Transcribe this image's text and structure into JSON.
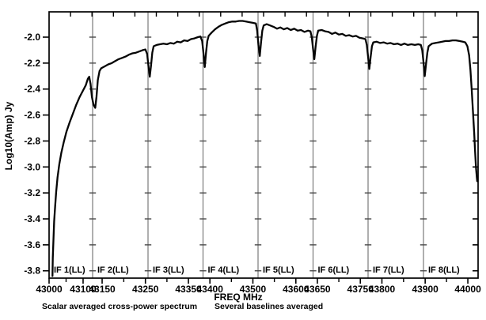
{
  "chart_data": {
    "type": "line",
    "title": "",
    "xlabel": "FREQ MHz",
    "ylabel": "Log10(Amp) Jy",
    "caption_left": "Scalar averaged cross-power spectrum",
    "caption_right": "Several baselines averaged",
    "x_start_mhz": 43000,
    "x_end_mhz": 44024,
    "ylim": [
      -3.86,
      -1.8
    ],
    "grid": "vertical panel separators only",
    "legend": "none",
    "y_ticks": [
      {
        "value": -2.0,
        "label": "-2.0"
      },
      {
        "value": -2.2,
        "label": "-2.2"
      },
      {
        "value": -2.4,
        "label": "-2.4"
      },
      {
        "value": -2.6,
        "label": "-2.6"
      },
      {
        "value": -2.8,
        "label": "-2.8"
      },
      {
        "value": -3.0,
        "label": "-3.0"
      },
      {
        "value": -3.2,
        "label": "-3.2"
      },
      {
        "value": -3.4,
        "label": "-3.4"
      },
      {
        "value": -3.6,
        "label": "-3.6"
      },
      {
        "value": -3.8,
        "label": "-3.8"
      }
    ],
    "panels": [
      {
        "label": "IF 1(LL)",
        "f0": 43000,
        "f1": 43128,
        "labeled_ticks": [
          43000,
          43100
        ],
        "minor_ticks": [
          43050
        ]
      },
      {
        "label": "IF 2(LL)",
        "f0": 43128,
        "f1": 43256,
        "labeled_ticks": [
          43150,
          43250
        ],
        "minor_ticks": [
          43200
        ]
      },
      {
        "label": "IF 3(LL)",
        "f0": 43256,
        "f1": 43384,
        "labeled_ticks": [
          43350
        ],
        "minor_ticks": [
          43300
        ]
      },
      {
        "label": "IF 4(LL)",
        "f0": 43384,
        "f1": 43512,
        "labeled_ticks": [
          43400,
          43500
        ],
        "minor_ticks": [
          43450
        ]
      },
      {
        "label": "IF 5(LL)",
        "f0": 43512,
        "f1": 43640,
        "labeled_ticks": [
          43600
        ],
        "minor_ticks": [
          43550
        ]
      },
      {
        "label": "IF 6(LL)",
        "f0": 43640,
        "f1": 43768,
        "labeled_ticks": [
          43650,
          43750
        ],
        "minor_ticks": [
          43700
        ]
      },
      {
        "label": "IF 7(LL)",
        "f0": 43768,
        "f1": 43896,
        "labeled_ticks": [
          43800
        ],
        "minor_ticks": [
          43850
        ]
      },
      {
        "label": "IF 8(LL)",
        "f0": 43896,
        "f1": 44024,
        "labeled_ticks": [
          43900,
          44000
        ],
        "minor_ticks": [
          43950
        ]
      }
    ],
    "colors": {
      "curve": "#050505",
      "frame": "#000000",
      "panel_line": "#7a7a7a",
      "panel_tick": "#4a4a4a",
      "text": "#000000"
    },
    "series": [
      {
        "name": "cross-power amplitude",
        "x_unit": "MHz",
        "y_unit": "log10(Jy)",
        "points": [
          [
            43010,
            -3.84
          ],
          [
            43011,
            -3.7
          ],
          [
            43013,
            -3.55
          ],
          [
            43015,
            -3.42
          ],
          [
            43018,
            -3.3
          ],
          [
            43021,
            -3.19
          ],
          [
            43025,
            -3.08
          ],
          [
            43030,
            -2.98
          ],
          [
            43036,
            -2.89
          ],
          [
            43043,
            -2.81
          ],
          [
            43051,
            -2.73
          ],
          [
            43060,
            -2.66
          ],
          [
            43070,
            -2.59
          ],
          [
            43080,
            -2.52
          ],
          [
            43090,
            -2.46
          ],
          [
            43100,
            -2.41
          ],
          [
            43108,
            -2.37
          ],
          [
            43114,
            -2.32
          ],
          [
            43118,
            -2.305
          ],
          [
            43122,
            -2.36
          ],
          [
            43126,
            -2.46
          ],
          [
            43130,
            -2.52
          ],
          [
            43134,
            -2.545
          ],
          [
            43137,
            -2.46
          ],
          [
            43140,
            -2.33
          ],
          [
            43144,
            -2.26
          ],
          [
            43148,
            -2.24
          ],
          [
            43156,
            -2.225
          ],
          [
            43164,
            -2.21
          ],
          [
            43172,
            -2.2
          ],
          [
            43180,
            -2.185
          ],
          [
            43188,
            -2.17
          ],
          [
            43196,
            -2.16
          ],
          [
            43204,
            -2.15
          ],
          [
            43212,
            -2.135
          ],
          [
            43220,
            -2.125
          ],
          [
            43228,
            -2.12
          ],
          [
            43236,
            -2.11
          ],
          [
            43244,
            -2.1
          ],
          [
            43250,
            -2.095
          ],
          [
            43254,
            -2.13
          ],
          [
            43257,
            -2.22
          ],
          [
            43260,
            -2.305
          ],
          [
            43263,
            -2.22
          ],
          [
            43266,
            -2.12
          ],
          [
            43269,
            -2.07
          ],
          [
            43276,
            -2.06
          ],
          [
            43284,
            -2.055
          ],
          [
            43292,
            -2.05
          ],
          [
            43300,
            -2.055
          ],
          [
            43308,
            -2.045
          ],
          [
            43316,
            -2.05
          ],
          [
            43324,
            -2.035
          ],
          [
            43332,
            -2.04
          ],
          [
            43340,
            -2.025
          ],
          [
            43348,
            -2.03
          ],
          [
            43356,
            -2.015
          ],
          [
            43364,
            -2.01
          ],
          [
            43372,
            -2.0
          ],
          [
            43378,
            -1.995
          ],
          [
            43382,
            -2.03
          ],
          [
            43385,
            -2.12
          ],
          [
            43388,
            -2.23
          ],
          [
            43391,
            -2.12
          ],
          [
            43394,
            -2.03
          ],
          [
            43397,
            -1.99
          ],
          [
            43404,
            -1.965
          ],
          [
            43412,
            -1.94
          ],
          [
            43420,
            -1.92
          ],
          [
            43428,
            -1.905
          ],
          [
            43436,
            -1.895
          ],
          [
            43444,
            -1.885
          ],
          [
            43452,
            -1.88
          ],
          [
            43460,
            -1.88
          ],
          [
            43468,
            -1.875
          ],
          [
            43476,
            -1.875
          ],
          [
            43484,
            -1.88
          ],
          [
            43492,
            -1.885
          ],
          [
            43500,
            -1.89
          ],
          [
            43507,
            -1.895
          ],
          [
            43510,
            -1.95
          ],
          [
            43513,
            -2.06
          ],
          [
            43516,
            -2.145
          ],
          [
            43519,
            -2.04
          ],
          [
            43522,
            -1.95
          ],
          [
            43525,
            -1.91
          ],
          [
            43532,
            -1.9
          ],
          [
            43540,
            -1.91
          ],
          [
            43548,
            -1.92
          ],
          [
            43556,
            -1.935
          ],
          [
            43564,
            -1.925
          ],
          [
            43572,
            -1.94
          ],
          [
            43580,
            -1.93
          ],
          [
            43588,
            -1.945
          ],
          [
            43596,
            -1.935
          ],
          [
            43604,
            -1.95
          ],
          [
            43612,
            -1.945
          ],
          [
            43620,
            -1.96
          ],
          [
            43628,
            -1.95
          ],
          [
            43634,
            -1.955
          ],
          [
            43637,
            -2.0
          ],
          [
            43640,
            -2.09
          ],
          [
            43643,
            -2.17
          ],
          [
            43646,
            -2.07
          ],
          [
            43649,
            -1.99
          ],
          [
            43652,
            -1.95
          ],
          [
            43660,
            -1.945
          ],
          [
            43668,
            -1.955
          ],
          [
            43676,
            -1.96
          ],
          [
            43684,
            -1.975
          ],
          [
            43692,
            -1.965
          ],
          [
            43700,
            -1.98
          ],
          [
            43708,
            -1.975
          ],
          [
            43716,
            -1.99
          ],
          [
            43724,
            -1.985
          ],
          [
            43732,
            -1.995
          ],
          [
            43740,
            -1.99
          ],
          [
            43748,
            -2.005
          ],
          [
            43756,
            -2.01
          ],
          [
            43762,
            -2.015
          ],
          [
            43765,
            -2.06
          ],
          [
            43768,
            -2.15
          ],
          [
            43771,
            -2.245
          ],
          [
            43774,
            -2.15
          ],
          [
            43777,
            -2.07
          ],
          [
            43780,
            -2.04
          ],
          [
            43788,
            -2.035
          ],
          [
            43796,
            -2.045
          ],
          [
            43804,
            -2.04
          ],
          [
            43812,
            -2.05
          ],
          [
            43820,
            -2.045
          ],
          [
            43828,
            -2.055
          ],
          [
            43836,
            -2.05
          ],
          [
            43844,
            -2.06
          ],
          [
            43852,
            -2.05
          ],
          [
            43860,
            -2.06
          ],
          [
            43868,
            -2.055
          ],
          [
            43876,
            -2.06
          ],
          [
            43884,
            -2.055
          ],
          [
            43890,
            -2.06
          ],
          [
            43893,
            -2.1
          ],
          [
            43896,
            -2.19
          ],
          [
            43899,
            -2.3
          ],
          [
            43902,
            -2.21
          ],
          [
            43905,
            -2.12
          ],
          [
            43908,
            -2.07
          ],
          [
            43916,
            -2.05
          ],
          [
            43924,
            -2.045
          ],
          [
            43932,
            -2.04
          ],
          [
            43940,
            -2.035
          ],
          [
            43948,
            -2.03
          ],
          [
            43956,
            -2.03
          ],
          [
            43964,
            -2.025
          ],
          [
            43972,
            -2.025
          ],
          [
            43980,
            -2.03
          ],
          [
            43988,
            -2.035
          ],
          [
            43994,
            -2.04
          ],
          [
            43999,
            -2.07
          ],
          [
            44003,
            -2.14
          ],
          [
            44006,
            -2.25
          ],
          [
            44009,
            -2.4
          ],
          [
            44012,
            -2.57
          ],
          [
            44015,
            -2.74
          ],
          [
            44017,
            -2.88
          ],
          [
            44019,
            -3.0
          ],
          [
            44021,
            -3.08
          ],
          [
            44022,
            -3.11
          ]
        ]
      }
    ]
  }
}
